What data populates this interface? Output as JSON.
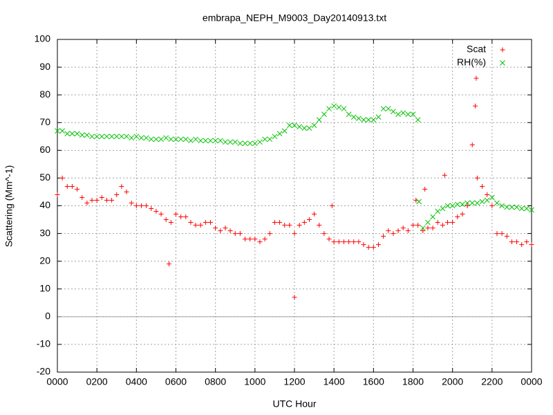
{
  "chart_data": {
    "type": "scatter",
    "title": "embrapa_NEPH_M9003_Day20140913.txt",
    "xlabel": "UTC Hour",
    "ylabel": "Scattering (Mm^-1)",
    "xlim": [
      0,
      24
    ],
    "xticks": [
      {
        "value": 0,
        "label": "0000"
      },
      {
        "value": 2,
        "label": "0200"
      },
      {
        "value": 4,
        "label": "0400"
      },
      {
        "value": 6,
        "label": "0600"
      },
      {
        "value": 8,
        "label": "0800"
      },
      {
        "value": 10,
        "label": "1000"
      },
      {
        "value": 12,
        "label": "1200"
      },
      {
        "value": 14,
        "label": "1400"
      },
      {
        "value": 16,
        "label": "1600"
      },
      {
        "value": 18,
        "label": "1800"
      },
      {
        "value": 20,
        "label": "2000"
      },
      {
        "value": 22,
        "label": "2200"
      },
      {
        "value": 24,
        "label": "0000"
      }
    ],
    "ylim": [
      -20,
      100
    ],
    "yticks": [
      -20,
      -10,
      0,
      10,
      20,
      30,
      40,
      50,
      60,
      70,
      80,
      90,
      100
    ],
    "grid": true,
    "zeroaxis": true,
    "legend": "top-right",
    "series": [
      {
        "name": "Scat",
        "color": "#ff0000",
        "marker": "plus",
        "x": [
          0,
          0.25,
          0.5,
          0.75,
          1,
          1.25,
          1.5,
          1.75,
          2,
          2.25,
          2.5,
          2.75,
          3,
          3.25,
          3.5,
          3.75,
          4,
          4.25,
          4.5,
          4.75,
          5,
          5.25,
          5.5,
          5.75,
          6,
          6.25,
          6.5,
          6.75,
          7,
          7.25,
          7.5,
          7.75,
          8,
          8.25,
          8.5,
          8.75,
          9,
          9.25,
          9.5,
          9.75,
          10,
          10.25,
          10.5,
          10.75,
          11,
          11.25,
          11.5,
          11.75,
          12,
          12.25,
          12.5,
          12.75,
          13,
          13.25,
          13.5,
          13.75,
          14,
          14.25,
          14.5,
          14.75,
          15,
          15.25,
          15.5,
          15.75,
          16,
          16.25,
          16.5,
          16.75,
          17,
          17.25,
          17.5,
          17.75,
          18,
          18.25,
          18.5,
          18.75,
          19,
          19.25,
          19.5,
          19.75,
          20,
          20.25,
          20.5,
          20.75,
          21,
          21.25,
          21.5,
          21.75,
          22,
          22.25,
          22.5,
          22.75,
          23,
          23.25,
          23.5,
          23.75,
          24,
          5.65,
          12,
          21.2,
          21.15,
          19.6,
          18.6,
          13.9,
          18.15
        ],
        "values": [
          44,
          50,
          47,
          47,
          46,
          43,
          41,
          42,
          42,
          43,
          42,
          42,
          44,
          47,
          45,
          41,
          40,
          40,
          40,
          39,
          38,
          37,
          35,
          34,
          37,
          36,
          36,
          34,
          33,
          33,
          34,
          34,
          32,
          31,
          32,
          31,
          30,
          30,
          28,
          28,
          28,
          27,
          28,
          30,
          34,
          34,
          33,
          33,
          30,
          33,
          34,
          35,
          37,
          33,
          30,
          28,
          27,
          27,
          27,
          27,
          27,
          27,
          26,
          25,
          25,
          26,
          29,
          31,
          30,
          31,
          32,
          31,
          33,
          33,
          31,
          32,
          32,
          34,
          33,
          34,
          34,
          36,
          37,
          40,
          62,
          50,
          47,
          44,
          40,
          30,
          30,
          29,
          27,
          27,
          26,
          27,
          26,
          19,
          7,
          86,
          76,
          51,
          46,
          40,
          42
        ]
      },
      {
        "name": "RH(%)",
        "color": "#00c000",
        "marker": "cross",
        "x": [
          0,
          0.25,
          0.5,
          0.75,
          1,
          1.25,
          1.5,
          1.75,
          2,
          2.25,
          2.5,
          2.75,
          3,
          3.25,
          3.5,
          3.75,
          4,
          4.25,
          4.5,
          4.75,
          5,
          5.25,
          5.5,
          5.75,
          6,
          6.25,
          6.5,
          6.75,
          7,
          7.25,
          7.5,
          7.75,
          8,
          8.25,
          8.5,
          8.75,
          9,
          9.25,
          9.5,
          9.75,
          10,
          10.25,
          10.5,
          10.75,
          11,
          11.25,
          11.5,
          11.75,
          12,
          12.25,
          12.5,
          12.75,
          13,
          13.25,
          13.5,
          13.75,
          14,
          14.25,
          14.5,
          14.75,
          15,
          15.25,
          15.5,
          15.75,
          16,
          16.25,
          16.5,
          16.75,
          17,
          17.25,
          17.5,
          17.75,
          18,
          18.25,
          18.3,
          18.5,
          18.75,
          19,
          19.25,
          19.5,
          19.75,
          20,
          20.25,
          20.5,
          20.75,
          21,
          21.25,
          21.5,
          21.75,
          22,
          22.25,
          22.5,
          22.75,
          23,
          23.25,
          23.5,
          23.75,
          24
        ],
        "values": [
          67,
          67,
          66,
          66,
          66,
          65.5,
          65.5,
          65,
          65,
          65,
          65,
          65,
          65,
          65,
          65,
          64.5,
          65,
          64.5,
          64.5,
          64,
          64,
          64,
          64.5,
          64,
          64,
          64,
          64,
          63.5,
          64,
          63.5,
          63.5,
          63.5,
          63.5,
          63.5,
          63,
          63,
          63,
          62.5,
          62.5,
          62.5,
          62.5,
          63,
          64,
          64,
          65,
          66,
          67,
          69,
          69,
          68.5,
          68,
          68,
          69,
          71,
          73,
          75,
          76,
          75.5,
          75,
          73,
          72,
          71.5,
          71,
          71,
          71,
          72,
          75,
          75,
          74,
          73,
          73.5,
          73,
          73,
          71,
          41.5,
          32,
          34,
          36,
          38,
          39,
          40,
          40,
          40.5,
          40.5,
          41,
          41,
          41,
          41.5,
          42,
          43,
          41,
          40,
          39.5,
          39.5,
          39.5,
          39,
          39,
          38.5
        ]
      }
    ]
  }
}
